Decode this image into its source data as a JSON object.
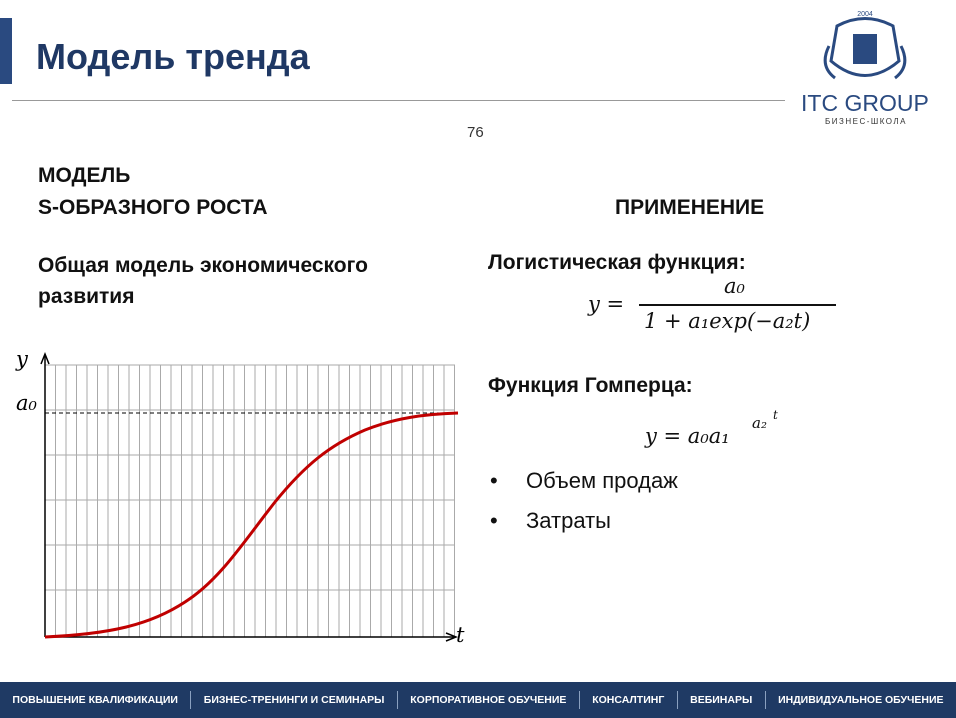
{
  "header": {
    "title": "Модель тренда",
    "page_number": "76",
    "logo": {
      "name": "ITC GROUP",
      "subtitle": "БИЗНЕС-ШКОЛА",
      "year": "2004"
    }
  },
  "left": {
    "heading": [
      "МОДЕЛЬ",
      "S-ОБРАЗНОГО РОСТА"
    ],
    "subheading": [
      "Общая модель экономического",
      "развития"
    ],
    "diagram": {
      "y_label": "y",
      "a0_label": "a₀",
      "x_label": "t"
    }
  },
  "right": {
    "heading": "ПРИМЕНЕНИЕ",
    "logistic": {
      "title": "Логистическая функция:",
      "lhs": "y =",
      "numerator": "a₀",
      "denominator": "1 + a₁exp(−a₂t)"
    },
    "gompertz": {
      "title": "Функция Гомперца:",
      "base": "y = a₀a₁",
      "exponent": "a₂",
      "exponent2": "t"
    },
    "bullets": [
      "Объем продаж",
      "Затраты"
    ]
  },
  "footer": {
    "items": [
      "ПОВЫШЕНИЕ КВАЛИФИКАЦИИ",
      "БИЗНЕС-ТРЕНИНГИ И СЕМИНАРЫ",
      "КОРПОРАТИВНОЕ ОБУЧЕНИЕ",
      "КОНСАЛТИНГ",
      "ВЕБИНАРЫ",
      "ИНДИВИДУАЛЬНОЕ ОБУЧЕНИЕ"
    ]
  }
}
